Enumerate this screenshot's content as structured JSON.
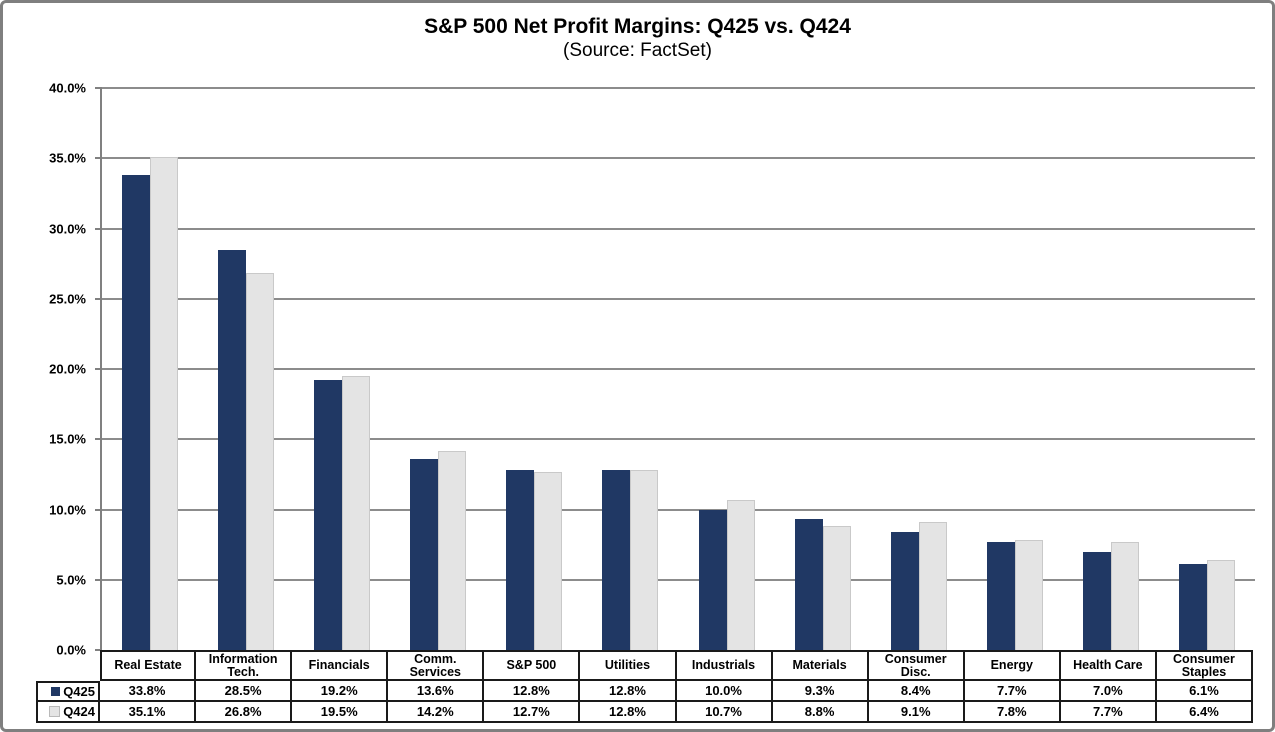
{
  "title": "S&P 500 Net Profit Margins: Q425 vs. Q424",
  "subtitle": "(Source: FactSet)",
  "colors": {
    "bar_q425": "#203864",
    "bar_q424": "#E4E4E4",
    "gridline": "#8C8C8C",
    "axis": "#808080",
    "table_border": "#1A1A1A",
    "frame": "#7F7F7F"
  },
  "chart_data": {
    "type": "bar",
    "title": "S&P 500 Net Profit Margins: Q425 vs. Q424",
    "subtitle": "(Source: FactSet)",
    "categories": [
      "Real Estate",
      "Information Tech.",
      "Financials",
      "Comm. Services",
      "S&P 500",
      "Utilities",
      "Industrials",
      "Materials",
      "Consumer Disc.",
      "Energy",
      "Health Care",
      "Consumer Staples"
    ],
    "category_labels": [
      "Real Estate",
      "Information\nTech.",
      "Financials",
      "Comm.\nServices",
      "S&P 500",
      "Utilities",
      "Industrials",
      "Materials",
      "Consumer\nDisc.",
      "Energy",
      "Health Care",
      "Consumer\nStaples"
    ],
    "series": [
      {
        "name": "Q425",
        "color": "#203864",
        "values": [
          33.8,
          28.5,
          19.2,
          13.6,
          12.8,
          12.8,
          10.0,
          9.3,
          8.4,
          7.7,
          7.0,
          6.1
        ]
      },
      {
        "name": "Q424",
        "color": "#E4E4E4",
        "values": [
          35.1,
          26.8,
          19.5,
          14.2,
          12.7,
          12.8,
          10.7,
          8.8,
          9.1,
          7.8,
          7.7,
          6.4
        ]
      }
    ],
    "ylim": [
      0,
      40
    ],
    "ytick_step": 5,
    "ytick_labels": [
      "0.0%",
      "5.0%",
      "10.0%",
      "15.0%",
      "20.0%",
      "25.0%",
      "30.0%",
      "35.0%",
      "40.0%"
    ],
    "value_format": "one_decimal_percent",
    "grid": true,
    "legend_position": "data-table-left"
  }
}
